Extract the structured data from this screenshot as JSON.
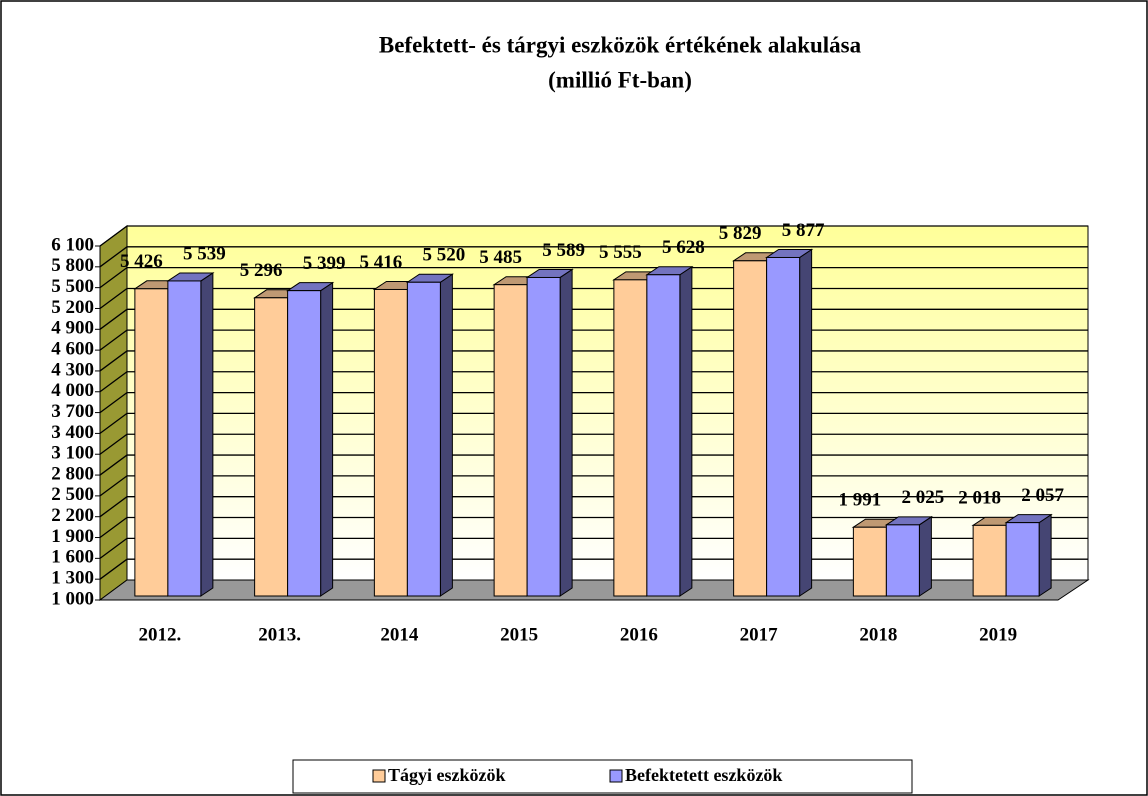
{
  "chart_data": {
    "type": "bar3d",
    "title": "Befektett- és tárgyi eszközök értékének alakulása",
    "subtitle": "(millió Ft-ban)",
    "categories": [
      "2012.",
      "2013.",
      "2014",
      "2015",
      "2016",
      "2017",
      "2018",
      "2019"
    ],
    "series": [
      {
        "name": "Tágyi eszközök",
        "color": "#ffcc99",
        "values": [
          5426,
          5296,
          5416,
          5485,
          5555,
          5829,
          1991,
          2018
        ],
        "value_labels": [
          "5 426",
          "5 296",
          "5 416",
          "5 485",
          "5 555",
          "5 829",
          "1 991",
          "2 018"
        ]
      },
      {
        "name": "Befektetett eszközök",
        "color": "#9999ff",
        "values": [
          5539,
          5399,
          5520,
          5589,
          5628,
          5877,
          2025,
          2057
        ],
        "value_labels": [
          "5 539",
          "5 399",
          "5 520",
          "5 589",
          "5 628",
          "5 877",
          "2 025",
          "2 057"
        ]
      }
    ],
    "ylim": [
      1000,
      6100
    ],
    "yticks": [
      {
        "value": 1000,
        "label": "1 000"
      },
      {
        "value": 1300,
        "label": "1 300"
      },
      {
        "value": 1600,
        "label": "1 600"
      },
      {
        "value": 1900,
        "label": "1 900"
      },
      {
        "value": 2200,
        "label": "2 200"
      },
      {
        "value": 2500,
        "label": "2 500"
      },
      {
        "value": 2800,
        "label": "2 800"
      },
      {
        "value": 3100,
        "label": "3 100"
      },
      {
        "value": 3400,
        "label": "3 400"
      },
      {
        "value": 3700,
        "label": "3 700"
      },
      {
        "value": 4000,
        "label": "4 000"
      },
      {
        "value": 4300,
        "label": "4 300"
      },
      {
        "value": 4600,
        "label": "4 600"
      },
      {
        "value": 4900,
        "label": "4 900"
      },
      {
        "value": 5200,
        "label": "5 200"
      },
      {
        "value": 5500,
        "label": "5 500"
      },
      {
        "value": 5800,
        "label": "5 800"
      },
      {
        "value": 6100,
        "label": "6 100"
      }
    ],
    "grid": true,
    "legend": "bottom"
  }
}
